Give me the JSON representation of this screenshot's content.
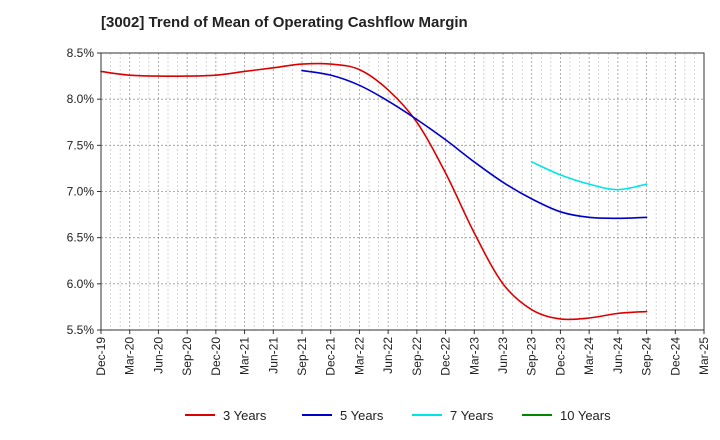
{
  "chart_data": {
    "type": "line",
    "title": "[3002]  Trend of Mean of Operating Cashflow Margin",
    "xlabel": "",
    "ylabel": "",
    "x": [
      "Dec-19",
      "Mar-20",
      "Jun-20",
      "Sep-20",
      "Dec-20",
      "Mar-21",
      "Jun-21",
      "Sep-21",
      "Dec-21",
      "Mar-22",
      "Jun-22",
      "Sep-22",
      "Dec-22",
      "Mar-23",
      "Jun-23",
      "Sep-23",
      "Dec-23",
      "Mar-24",
      "Jun-24",
      "Sep-24",
      "Dec-24",
      "Mar-25"
    ],
    "ylim": [
      5.5,
      8.5
    ],
    "yticks": [
      "8.5%",
      "8.0%",
      "7.5%",
      "7.0%",
      "6.5%",
      "6.0%",
      "5.5%"
    ],
    "ytick_values": [
      8.5,
      8.0,
      7.5,
      7.0,
      6.5,
      6.0,
      5.5
    ],
    "grid": true,
    "legend_position": "bottom",
    "series": [
      {
        "name": "3 Years",
        "color": "#dd0000",
        "values": [
          8.3,
          8.26,
          8.25,
          8.25,
          8.26,
          8.3,
          8.34,
          8.38,
          8.38,
          8.32,
          8.1,
          7.75,
          7.2,
          6.55,
          6.0,
          5.72,
          5.62,
          5.63,
          5.68,
          5.7,
          null,
          null
        ]
      },
      {
        "name": "5 Years",
        "color": "#0000cc",
        "values": [
          null,
          null,
          null,
          null,
          null,
          null,
          null,
          8.31,
          8.26,
          8.15,
          7.98,
          7.78,
          7.56,
          7.32,
          7.1,
          6.92,
          6.78,
          6.72,
          6.71,
          6.72,
          null,
          null
        ]
      },
      {
        "name": "7 Years",
        "color": "#00e5e5",
        "values": [
          null,
          null,
          null,
          null,
          null,
          null,
          null,
          null,
          null,
          null,
          null,
          null,
          null,
          null,
          null,
          7.32,
          7.18,
          7.08,
          7.02,
          7.08,
          null,
          null
        ]
      },
      {
        "name": "10 Years",
        "color": "#008800",
        "values": [
          null,
          null,
          null,
          null,
          null,
          null,
          null,
          null,
          null,
          null,
          null,
          null,
          null,
          null,
          null,
          null,
          null,
          null,
          null,
          null,
          null,
          null
        ]
      }
    ]
  }
}
